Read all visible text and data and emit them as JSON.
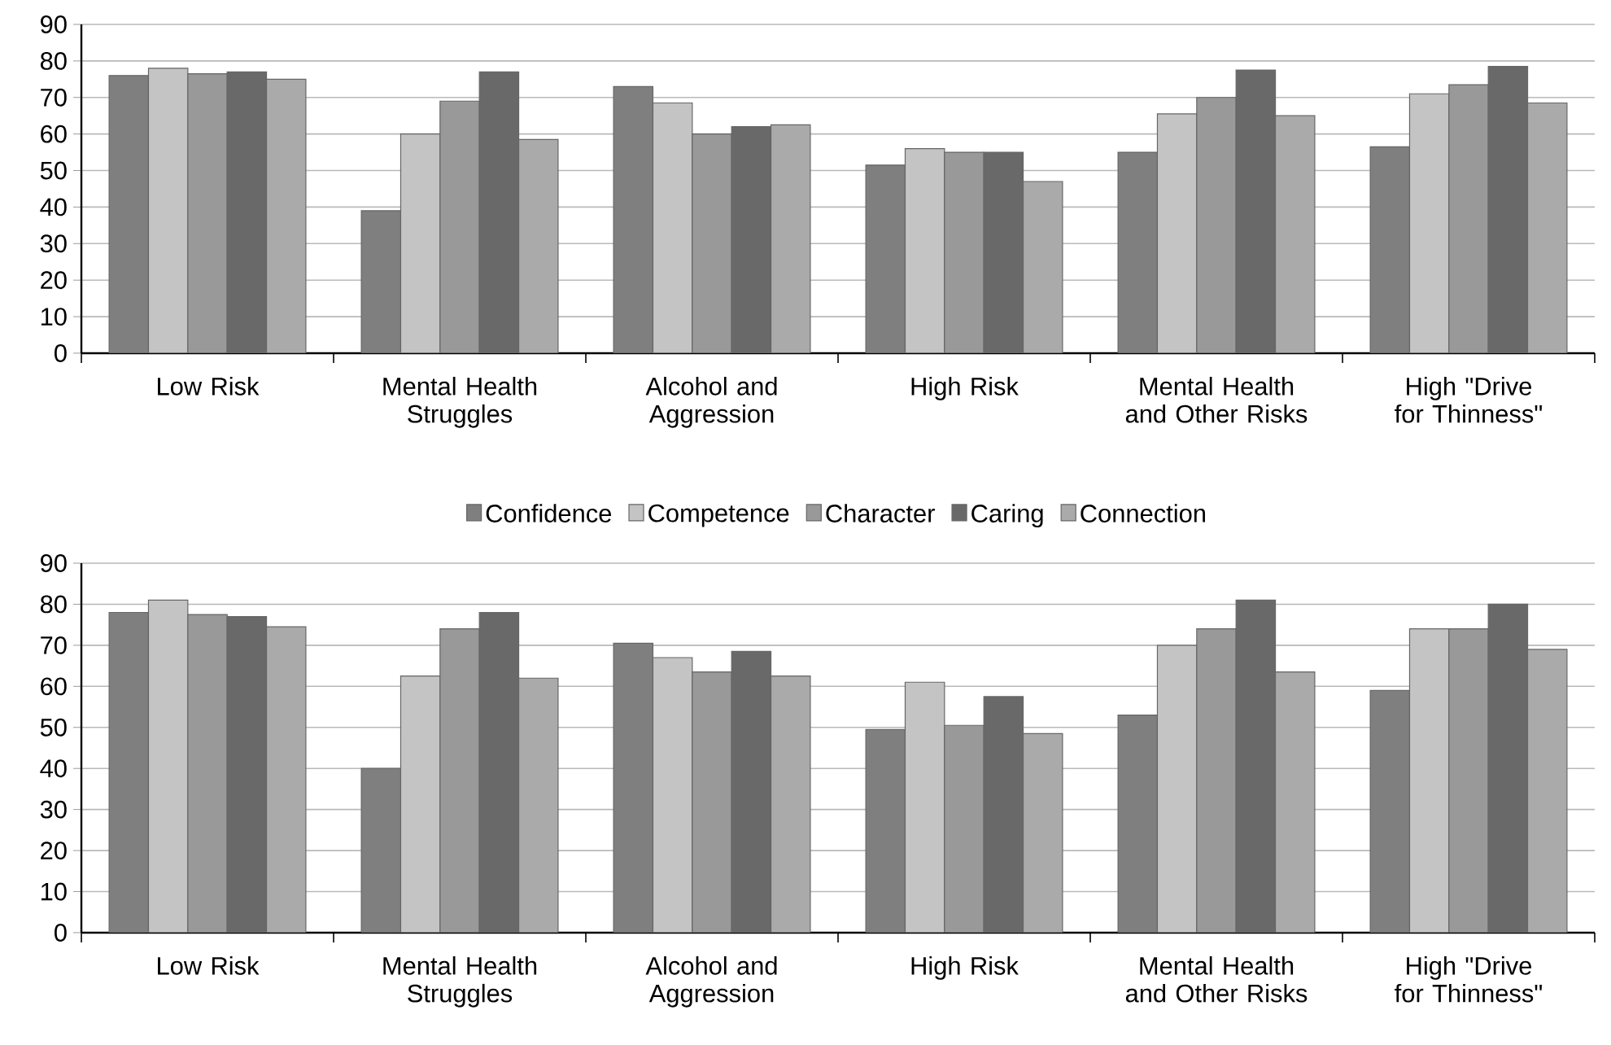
{
  "chart_data": [
    {
      "type": "bar",
      "categories": [
        "Low Risk",
        "Mental Health Struggles",
        "Alcohol and Aggression",
        "High Risk",
        "Mental Health and Other Risks",
        "High \"Drive for Thinness\""
      ],
      "series": [
        {
          "name": "Confidence",
          "color": "#7f7f7f",
          "values": [
            76,
            39,
            73,
            51.5,
            55,
            56.5
          ]
        },
        {
          "name": "Competence",
          "color": "#c3c4c3",
          "values": [
            78,
            60,
            68.5,
            56,
            65.5,
            71
          ]
        },
        {
          "name": "Character",
          "color": "#999999",
          "values": [
            76.5,
            69,
            60,
            55,
            70,
            73.5
          ]
        },
        {
          "name": "Caring",
          "color": "#696969",
          "values": [
            77,
            77,
            62,
            55,
            77.5,
            78.5
          ]
        },
        {
          "name": "Connection",
          "color": "#aaaaaa",
          "values": [
            75,
            58.5,
            62.5,
            47,
            65,
            68.5
          ]
        }
      ],
      "ylim": [
        0,
        90
      ],
      "yticks": [
        0,
        10,
        20,
        30,
        40,
        50,
        60,
        70,
        80,
        90
      ],
      "grid": "y",
      "legend": "bottom"
    },
    {
      "type": "bar",
      "categories": [
        "Low Risk",
        "Mental Health Struggles",
        "Alcohol and Aggression",
        "High Risk",
        "Mental Health and Other Risks",
        "High \"Drive for Thinness\""
      ],
      "series": [
        {
          "color": "#7f7f7f",
          "values": [
            78,
            40,
            70.5,
            49.5,
            53,
            59
          ]
        },
        {
          "color": "#c3c4c3",
          "values": [
            81,
            62.5,
            67,
            61,
            70,
            74
          ]
        },
        {
          "color": "#999999",
          "values": [
            77.5,
            74,
            63.5,
            50.5,
            74,
            74
          ]
        },
        {
          "color": "#696969",
          "values": [
            77,
            78,
            68.5,
            57.5,
            81,
            80
          ]
        },
        {
          "color": "#aaaaaa",
          "values": [
            74.5,
            62,
            62.5,
            48.5,
            63.5,
            69
          ]
        }
      ],
      "ylim": [
        0,
        90
      ],
      "yticks": [
        0,
        10,
        20,
        30,
        40,
        50,
        60,
        70,
        80,
        90
      ],
      "grid": "y"
    }
  ]
}
